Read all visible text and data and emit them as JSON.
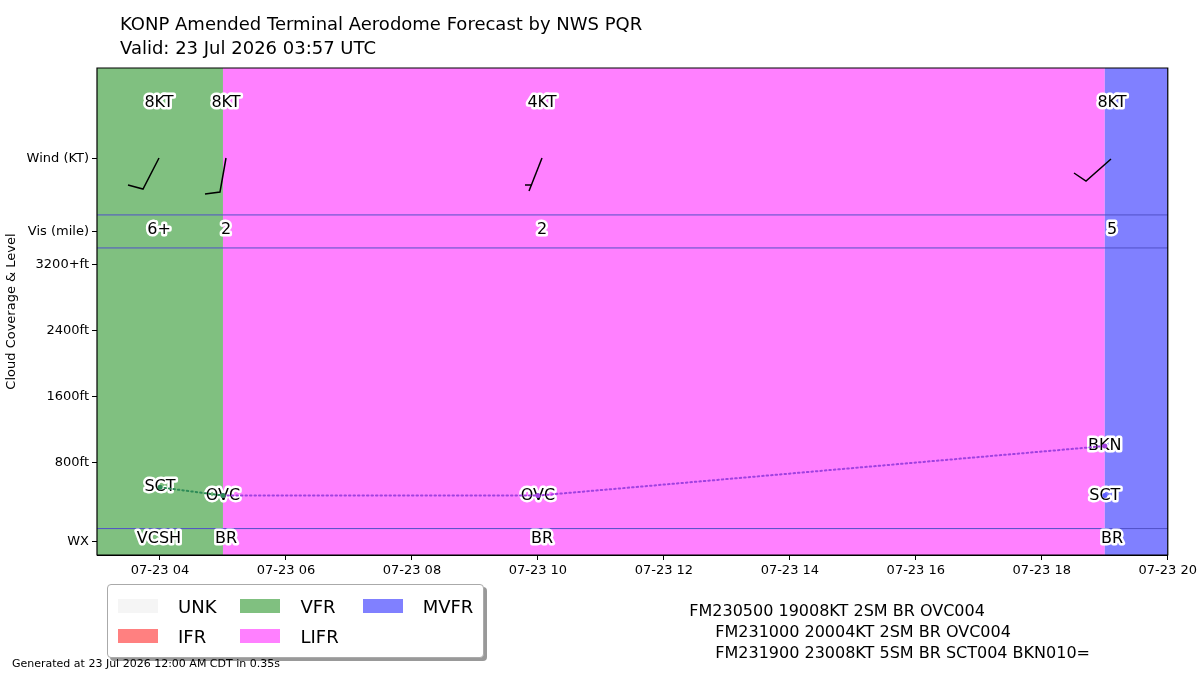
{
  "chart_data": {
    "type": "line",
    "title": "KONP Amended Terminal Aerodome Forecast by NWS PQR",
    "subtitle": "Valid: 23 Jul 2026 03:57 UTC",
    "ylabel": "Cloud Coverage & Level",
    "xlim": [
      "2026-07-23T03:00",
      "2026-07-23T20:00"
    ],
    "xticks": [
      {
        "value": "2026-07-23T04:00",
        "label": "07-23 04"
      },
      {
        "value": "2026-07-23T06:00",
        "label": "07-23 06"
      },
      {
        "value": "2026-07-23T08:00",
        "label": "07-23 08"
      },
      {
        "value": "2026-07-23T10:00",
        "label": "07-23 10"
      },
      {
        "value": "2026-07-23T12:00",
        "label": "07-23 12"
      },
      {
        "value": "2026-07-23T14:00",
        "label": "07-23 14"
      },
      {
        "value": "2026-07-23T16:00",
        "label": "07-23 16"
      },
      {
        "value": "2026-07-23T18:00",
        "label": "07-23 18"
      },
      {
        "value": "2026-07-23T20:00",
        "label": "07-23 20"
      }
    ],
    "ylim": [
      -320,
      5580
    ],
    "yticks": [
      {
        "value": -160,
        "label": "WX"
      },
      {
        "value": 800,
        "label": "800ft"
      },
      {
        "value": 1600,
        "label": "1600ft"
      },
      {
        "value": 2400,
        "label": "2400ft"
      },
      {
        "value": 3200,
        "label": "3200+ft"
      },
      {
        "value": 3600,
        "label": "Vis (mile)"
      },
      {
        "value": 4480,
        "label": "Wind (KT)"
      }
    ],
    "grid": false,
    "marker": "circle",
    "line_style": "dotted",
    "legend": "bottom left",
    "series": [
      {
        "name": "UNK",
        "color": "#f5f5f5",
        "type": "area"
      },
      {
        "name": "IFR",
        "color": "#ff8080",
        "type": "area"
      },
      {
        "color": "#2e8b57",
        "x": [
          "2026-07-23T04:00",
          "2026-07-23T05:00"
        ],
        "values": [
          500,
          400
        ],
        "value_labels": [
          "SCT",
          null
        ]
      },
      {
        "color": "#a040e0",
        "x": [
          "2026-07-23T05:00",
          "2026-07-23T10:00",
          "2026-07-23T19:00"
        ],
        "values": [
          400,
          400,
          1000
        ],
        "value_labels": [
          "OVC",
          "OVC",
          "BKN"
        ]
      },
      {
        "color": "#6060ff",
        "x": [
          "2026-07-23T19:00"
        ],
        "values": [
          400
        ],
        "value_labels": [
          "SCT"
        ]
      }
    ],
    "bands": [
      {
        "axis": "x",
        "from": "2026-07-23T03:00",
        "to": "2026-07-23T05:00",
        "label": "VFR",
        "color": "#80c080"
      },
      {
        "axis": "x",
        "from": "2026-07-23T05:00",
        "to": "2026-07-23T19:00",
        "label": "LIFR",
        "color": "#ff80ff"
      },
      {
        "axis": "x",
        "from": "2026-07-23T19:00",
        "to": "2026-07-23T20:00",
        "label": "MVFR",
        "color": "#8080ff"
      }
    ],
    "ref_lines": [
      {
        "axis": "y",
        "value": 0,
        "color": "#5050c8"
      },
      {
        "axis": "y",
        "value": 3400,
        "color": "#5050c8"
      },
      {
        "axis": "y",
        "value": 3800,
        "color": "#5050c8"
      }
    ],
    "annotations": [
      "8KT",
      "8KT",
      "4KT",
      "8KT",
      "6+",
      "2",
      "2",
      "5",
      "VCSH",
      "BR",
      "BR",
      "BR",
      "FM230500 19008KT 2SM BR OVC004",
      "FM231000 20004KT 2SM BR OVC004",
      "FM231900 23008KT 5SM BR SCT004 BKN010=",
      "Generated at 23 Jul 2026 12:00 AM CDT in 0.35s"
    ]
  }
}
